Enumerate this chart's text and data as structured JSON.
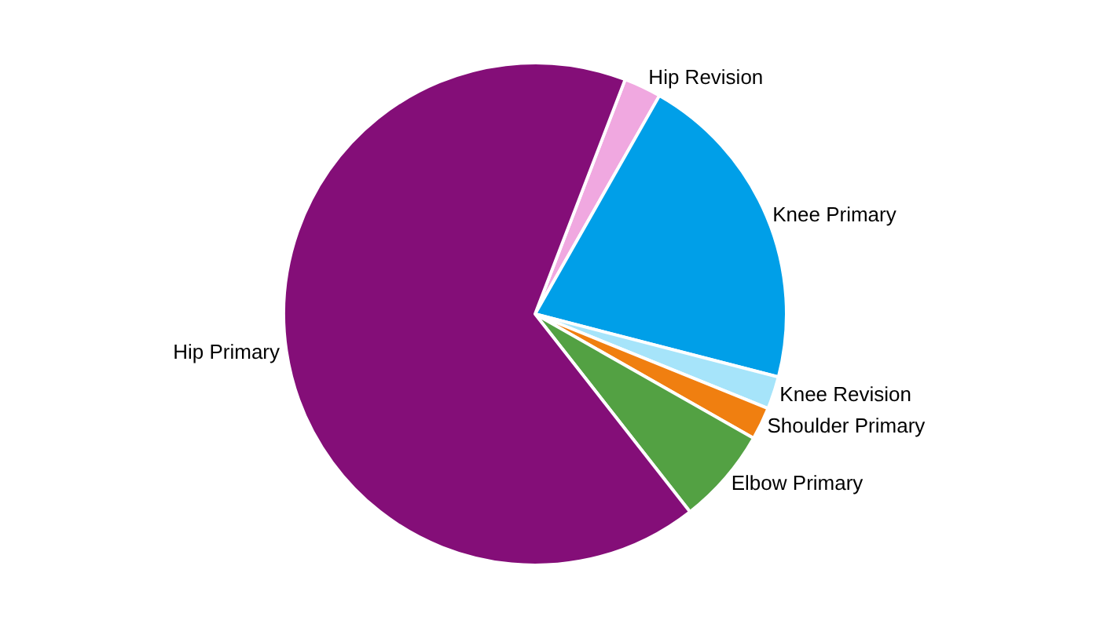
{
  "chart_data": {
    "type": "pie",
    "categories": [
      "Hip Revision",
      "Knee Primary",
      "Knee Revision",
      "Shoulder Primary",
      "Elbow Primary",
      "Hip Primary"
    ],
    "values": [
      2.4,
      20.8,
      2.1,
      2.1,
      6.2,
      66.4
    ],
    "colors": [
      "#f0a8e0",
      "#009fe8",
      "#a6e4fa",
      "#f07f10",
      "#53a143",
      "#840e78"
    ],
    "legend": false
  }
}
